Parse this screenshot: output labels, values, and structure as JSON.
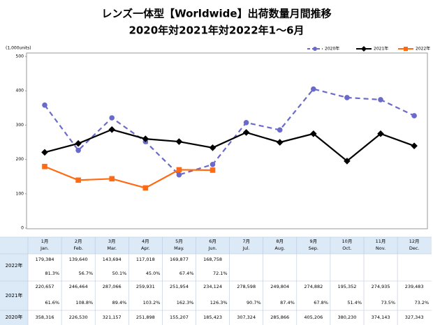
{
  "chart_data": {
    "type": "line",
    "title": "レンズ一体型【Worldwide】出荷数量月間推移",
    "subtitle": "2020年対2021年対2022年1～6月",
    "y_label": "(1,000units)",
    "categories": [
      "1月",
      "2月",
      "3月",
      "4月",
      "5月",
      "6月",
      "7月",
      "8月",
      "9月",
      "10月",
      "11月",
      "12月"
    ],
    "categories_en": [
      "Jan.",
      "Feb.",
      "Mar.",
      "Apr.",
      "May.",
      "Jun.",
      "Jul.",
      "Aug.",
      "Sep.",
      "Oct.",
      "Nov.",
      "Dec."
    ],
    "ylim": [
      0,
      500
    ],
    "yticks": [
      0,
      100,
      200,
      300,
      400,
      500
    ],
    "legend": "top-right",
    "series": [
      {
        "name": "2020年",
        "color": "#6a6acb",
        "marker": "circle",
        "dash": true,
        "values": [
          358.316,
          226.53,
          321.157,
          251.898,
          155.207,
          185.423,
          307.324,
          285.866,
          405.206,
          380.23,
          374.143,
          327.343
        ],
        "value_labels": [
          "358,316",
          "226,530",
          "321,157",
          "251,898",
          "155,207",
          "185,423",
          "307,324",
          "285,866",
          "405,206",
          "380,230",
          "374,143",
          "327,343"
        ]
      },
      {
        "name": "2021年",
        "color": "#000000",
        "marker": "diamond",
        "dash": false,
        "values": [
          220.657,
          246.464,
          287.066,
          259.931,
          251.954,
          234.124,
          278.598,
          249.804,
          274.882,
          195.352,
          274.935,
          239.483
        ],
        "value_labels": [
          "220,657",
          "246,464",
          "287,066",
          "259,931",
          "251,954",
          "234,124",
          "278,598",
          "249,804",
          "274,882",
          "195,352",
          "274,935",
          "239,483"
        ],
        "ratios": [
          "61.6%",
          "108.8%",
          "89.4%",
          "103.2%",
          "162.3%",
          "126.3%",
          "90.7%",
          "87.4%",
          "67.8%",
          "51.4%",
          "73.5%",
          "73.2%"
        ]
      },
      {
        "name": "2022年",
        "color": "#ff6a13",
        "marker": "square",
        "dash": false,
        "values": [
          179.384,
          139.64,
          143.694,
          117.018,
          169.877,
          168.758,
          null,
          null,
          null,
          null,
          null,
          null
        ],
        "value_labels": [
          "179,384",
          "139,640",
          "143,694",
          "117,018",
          "169,877",
          "168,758",
          null,
          null,
          null,
          null,
          null,
          null
        ],
        "ratios": [
          "81.3%",
          "56.7%",
          "50.1%",
          "45.0%",
          "67.4%",
          "72.1%",
          null,
          null,
          null,
          null,
          null,
          null
        ]
      }
    ]
  }
}
